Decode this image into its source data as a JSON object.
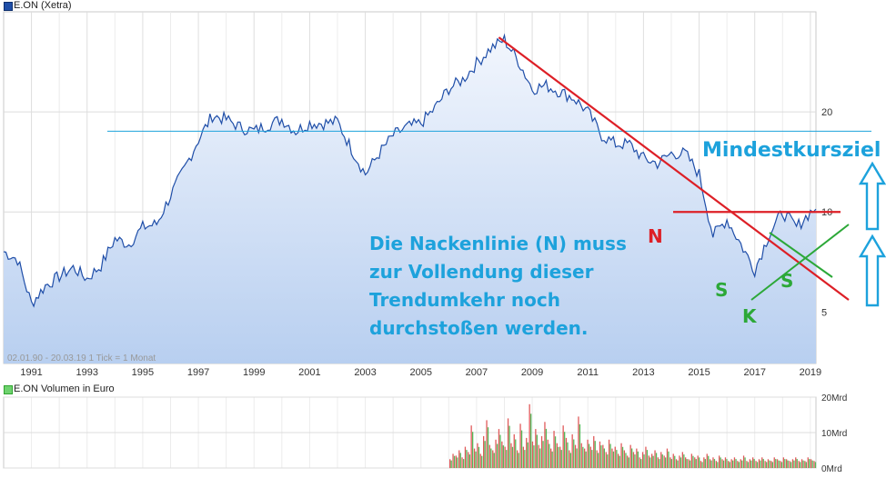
{
  "legend": {
    "price": "E.ON (Xetra)",
    "volume": "E.ON Volumen in Euro",
    "price_color": "#1f4ea8",
    "volume_color": "#2fa32f"
  },
  "footer": "02.01.90 - 20.03.19   1 Tick = 1 Monat",
  "chart_data": [
    {
      "type": "area",
      "series": [
        {
          "name": "E.ON (Xetra)",
          "x": [
            1990.0,
            1990.5,
            1991.0,
            1991.5,
            1992.0,
            1992.5,
            1993.0,
            1993.5,
            1994.0,
            1994.5,
            1995.0,
            1995.5,
            1996.0,
            1996.5,
            1997.0,
            1997.5,
            1998.0,
            1998.5,
            1999.0,
            1999.5,
            2000.0,
            2000.5,
            2001.0,
            2001.5,
            2002.0,
            2002.5,
            2003.0,
            2003.5,
            2004.0,
            2004.5,
            2005.0,
            2005.5,
            2006.0,
            2006.5,
            2007.0,
            2007.5,
            2008.0,
            2008.5,
            2009.0,
            2009.5,
            2010.0,
            2010.5,
            2011.0,
            2011.5,
            2012.0,
            2012.5,
            2013.0,
            2013.5,
            2014.0,
            2014.5,
            2015.0,
            2015.5,
            2016.0,
            2016.5,
            2017.0,
            2017.5,
            2018.0,
            2018.5,
            2019.0,
            2019.2
          ],
          "values": [
            7.6,
            7.2,
            5.3,
            6.0,
            6.4,
            6.8,
            6.3,
            6.9,
            8.3,
            8.0,
            9.0,
            9.2,
            11.2,
            13.5,
            16.5,
            19.5,
            19.0,
            18.0,
            17.5,
            18.3,
            19.0,
            17.5,
            18.5,
            18.5,
            18.7,
            15.5,
            13.0,
            15.0,
            17.0,
            18.0,
            18.5,
            20.5,
            23.5,
            25.0,
            28.0,
            31.0,
            33.0,
            28.5,
            23.5,
            24.0,
            23.0,
            22.0,
            20.0,
            17.0,
            16.0,
            16.0,
            14.5,
            14.0,
            15.0,
            15.0,
            13.0,
            8.5,
            9.5,
            8.0,
            6.7,
            8.5,
            10.0,
            9.0,
            10.0,
            10.2
          ]
        }
      ],
      "title": "",
      "xlabel": "",
      "ylabel": "",
      "x_ticks": [
        "1991",
        "1993",
        "1995",
        "1997",
        "1999",
        "2001",
        "2003",
        "2005",
        "2007",
        "2009",
        "2011",
        "2013",
        "2015",
        "2017",
        "2019"
      ],
      "y_ticks": [
        "5",
        "10",
        "20"
      ],
      "ylim": [
        3.5,
        40
      ],
      "xlim": [
        1990.0,
        2019.2
      ],
      "y_scale": "log",
      "grid": true,
      "legend_position": "top-left",
      "annotations": {
        "target_label": "Mindestkursziel",
        "target_level": 17.5,
        "neckline_label": "N",
        "neckline_level": 10.0,
        "shoulder_left_label": "S",
        "shoulder_right_label": "S",
        "head_label": "K",
        "text": [
          "Die Nackenlinie (N) muss",
          "zur Vollendung dieser",
          "Trendumkehr noch",
          "durchstoßen werden."
        ],
        "trendline_color": "#dd1f26",
        "target_color": "#1da2dc",
        "shoulder_color": "#2ca838"
      }
    },
    {
      "type": "bar",
      "series": [
        {
          "name": "E.ON Volumen in Euro",
          "values": [
            2.5,
            4.0,
            3.5,
            5.0,
            3.0,
            6.0,
            4.5,
            12.0,
            5.5,
            7.0,
            4.0,
            9.0,
            13.5,
            6.5,
            5.0,
            8.0,
            11.0,
            7.5,
            6.0,
            14.0,
            7.0,
            9.5,
            5.0,
            12.5,
            6.0,
            8.5,
            18.0,
            7.5,
            11.0,
            6.5,
            9.0,
            13.0,
            8.0,
            5.5,
            10.5,
            7.0,
            6.0,
            12.0,
            8.5,
            5.0,
            9.5,
            6.5,
            14.5,
            7.0,
            5.5,
            8.0,
            6.0,
            9.0,
            5.0,
            7.5,
            6.5,
            4.5,
            8.0,
            5.5,
            6.0,
            4.0,
            7.0,
            5.0,
            3.5,
            6.5,
            4.5,
            5.5,
            3.0,
            4.5,
            6.0,
            3.5,
            4.0,
            5.0,
            3.0,
            4.5,
            3.5,
            5.5,
            3.0,
            4.0,
            2.5,
            3.5,
            4.5,
            3.0,
            2.5,
            4.0,
            3.0,
            3.5,
            2.0,
            3.0,
            4.0,
            2.5,
            3.0,
            2.0,
            3.5,
            2.5,
            3.0,
            2.0,
            2.5,
            3.0,
            2.0,
            2.5,
            3.5,
            2.0,
            2.5,
            3.0,
            2.0,
            2.5,
            3.0,
            2.0,
            2.5,
            2.0,
            3.0,
            2.5,
            2.0,
            3.0,
            2.5,
            2.0,
            2.5,
            3.0,
            2.0,
            2.5,
            2.0,
            3.0,
            2.5,
            2.0
          ],
          "x_start": 2006.0,
          "x_end": 2019.2
        }
      ],
      "y_ticks": [
        "20Mrd",
        "10Mrd",
        "0Mrd"
      ],
      "ylim": [
        0,
        20
      ],
      "grid": true
    }
  ]
}
